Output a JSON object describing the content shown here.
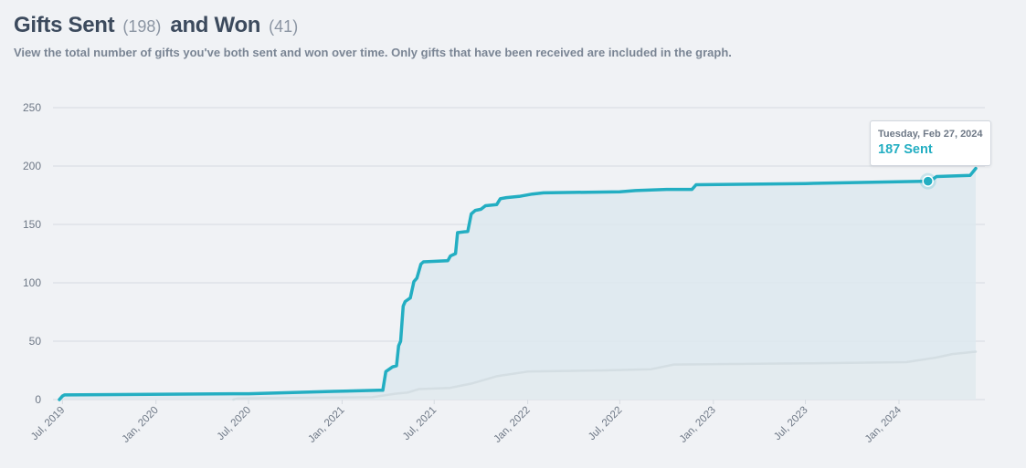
{
  "header": {
    "sent_label": "Gifts Sent",
    "sent_count": "(198)",
    "won_label": "and Won",
    "won_count": "(41)",
    "subtitle": "View the total number of gifts you've both sent and won over time. Only gifts that have been received are included in the graph."
  },
  "tooltip": {
    "date": "Tuesday, Feb 27, 2024",
    "value": "187 Sent"
  },
  "colors": {
    "background": "#f0f2f5",
    "sent_line": "#23aec2",
    "sent_fill": "#dde9ef",
    "won_line": "#d4dee3",
    "won_fill": "#e4ebef",
    "grid": "#d6dbe1"
  },
  "chart_data": {
    "type": "area",
    "ylim": [
      0,
      250
    ],
    "yticks": [
      0,
      50,
      100,
      150,
      200,
      250
    ],
    "xlim": [
      "2019-06-25",
      "2024-05-31"
    ],
    "xticks": [
      {
        "date": "2019-07-01",
        "label": "Jul, 2019"
      },
      {
        "date": "2020-01-01",
        "label": "Jan, 2020"
      },
      {
        "date": "2020-07-01",
        "label": "Jul, 2020"
      },
      {
        "date": "2021-01-01",
        "label": "Jan, 2021"
      },
      {
        "date": "2021-07-01",
        "label": "Jul, 2021"
      },
      {
        "date": "2022-01-01",
        "label": "Jan, 2022"
      },
      {
        "date": "2022-07-01",
        "label": "Jul, 2022"
      },
      {
        "date": "2023-01-01",
        "label": "Jan, 2023"
      },
      {
        "date": "2023-07-01",
        "label": "Jul, 2023"
      },
      {
        "date": "2024-01-01",
        "label": "Jan, 2024"
      }
    ],
    "highlight": {
      "series": 0,
      "date": "2024-02-27",
      "value": 187
    },
    "series": [
      {
        "points": [
          [
            "2019-06-25",
            0
          ],
          [
            "2019-07-01",
            3
          ],
          [
            "2019-07-05",
            4
          ],
          [
            "2020-06-15",
            5
          ],
          [
            "2020-07-01",
            5
          ],
          [
            "2020-12-15",
            7
          ],
          [
            "2021-03-15",
            8
          ],
          [
            "2021-03-22",
            8
          ],
          [
            "2021-03-28",
            24
          ],
          [
            "2021-04-10",
            28
          ],
          [
            "2021-04-18",
            29
          ],
          [
            "2021-04-22",
            46
          ],
          [
            "2021-04-26",
            50
          ],
          [
            "2021-05-01",
            80
          ],
          [
            "2021-05-05",
            84
          ],
          [
            "2021-05-15",
            87
          ],
          [
            "2021-05-22",
            101
          ],
          [
            "2021-05-28",
            104
          ],
          [
            "2021-06-05",
            116
          ],
          [
            "2021-06-10",
            118
          ],
          [
            "2021-07-28",
            119
          ],
          [
            "2021-08-02",
            123
          ],
          [
            "2021-08-12",
            125
          ],
          [
            "2021-08-16",
            143
          ],
          [
            "2021-09-05",
            144
          ],
          [
            "2021-09-12",
            159
          ],
          [
            "2021-09-20",
            162
          ],
          [
            "2021-10-01",
            163
          ],
          [
            "2021-10-10",
            166
          ],
          [
            "2021-11-01",
            167
          ],
          [
            "2021-11-08",
            172
          ],
          [
            "2021-11-20",
            173
          ],
          [
            "2021-12-15",
            174
          ],
          [
            "2022-01-10",
            176
          ],
          [
            "2022-02-01",
            177
          ],
          [
            "2022-07-01",
            178
          ],
          [
            "2022-08-01",
            179
          ],
          [
            "2022-10-01",
            180
          ],
          [
            "2022-11-20",
            180
          ],
          [
            "2022-11-28",
            184
          ],
          [
            "2023-07-01",
            185
          ],
          [
            "2024-02-27",
            187
          ],
          [
            "2024-03-05",
            188
          ],
          [
            "2024-03-15",
            191
          ],
          [
            "2024-05-20",
            192
          ],
          [
            "2024-05-31",
            198
          ]
        ]
      },
      {
        "points": [
          [
            "2020-06-01",
            0
          ],
          [
            "2020-06-10",
            1
          ],
          [
            "2021-03-01",
            2
          ],
          [
            "2021-04-15",
            5
          ],
          [
            "2021-05-10",
            6
          ],
          [
            "2021-06-01",
            9
          ],
          [
            "2021-08-01",
            10
          ],
          [
            "2021-09-15",
            14
          ],
          [
            "2021-11-01",
            20
          ],
          [
            "2022-01-01",
            24
          ],
          [
            "2022-06-01",
            25
          ],
          [
            "2022-09-01",
            26
          ],
          [
            "2022-10-15",
            30
          ],
          [
            "2023-07-01",
            31
          ],
          [
            "2024-01-15",
            32
          ],
          [
            "2024-03-15",
            36
          ],
          [
            "2024-04-15",
            39
          ],
          [
            "2024-05-31",
            41
          ]
        ]
      }
    ]
  }
}
